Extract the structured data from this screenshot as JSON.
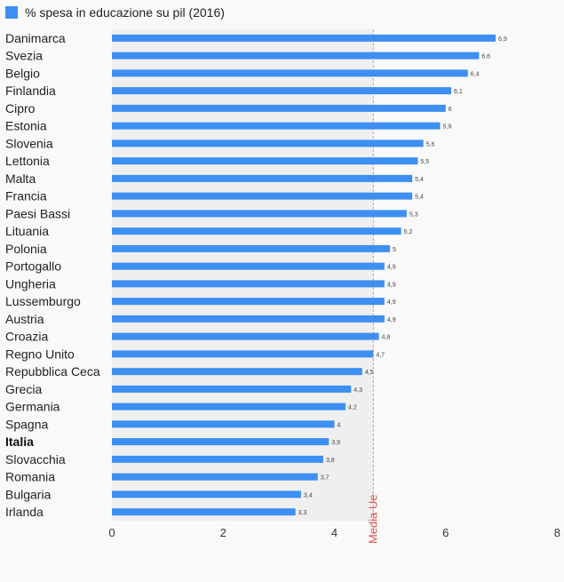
{
  "chart_data": {
    "type": "bar",
    "orientation": "horizontal",
    "legend": {
      "label": "% spesa in educazione su pil (2016)",
      "color": "#3d8ff2",
      "placement": "top-left"
    },
    "categories": [
      "Danimarca",
      "Svezia",
      "Belgio",
      "Finlandia",
      "Cipro",
      "Estonia",
      "Slovenia",
      "Lettonia",
      "Malta",
      "Francia",
      "Paesi Bassi",
      "Lituania",
      "Polonia",
      "Portogallo",
      "Ungheria",
      "Lussemburgo",
      "Austria",
      "Croazia",
      "Regno Unito",
      "Repubblica Ceca",
      "Grecia",
      "Germania",
      "Spagna",
      "Italia",
      "Slovacchia",
      "Romania",
      "Bulgaria",
      "Irlanda"
    ],
    "values": [
      6.9,
      6.6,
      6.4,
      6.1,
      6,
      5.9,
      5.6,
      5.5,
      5.4,
      5.4,
      5.3,
      5.2,
      5,
      4.9,
      4.9,
      4.9,
      4.9,
      4.8,
      4.7,
      4.5,
      4.3,
      4.2,
      4,
      3.9,
      3.8,
      3.7,
      3.4,
      3.3
    ],
    "value_labels": [
      "6,9",
      "6,6",
      "6,4",
      "6,1",
      "6",
      "5,9",
      "5,6",
      "5,5",
      "5,4",
      "5,4",
      "5,3",
      "5,2",
      "5",
      "4,9",
      "4,9",
      "4,9",
      "4,9",
      "4,8",
      "4,7",
      "4,5",
      "4,3",
      "4,2",
      "4",
      "3,9",
      "3,8",
      "3,7",
      "3,4",
      "3,3"
    ],
    "highlight_category": "Italia",
    "xlim": [
      0,
      8
    ],
    "xticks": [
      0,
      2,
      4,
      6,
      8
    ],
    "reference_line": {
      "label": "Media Ue",
      "value": 4.7,
      "color": "#d9534f"
    },
    "bar_color": "#3d8ff2"
  }
}
